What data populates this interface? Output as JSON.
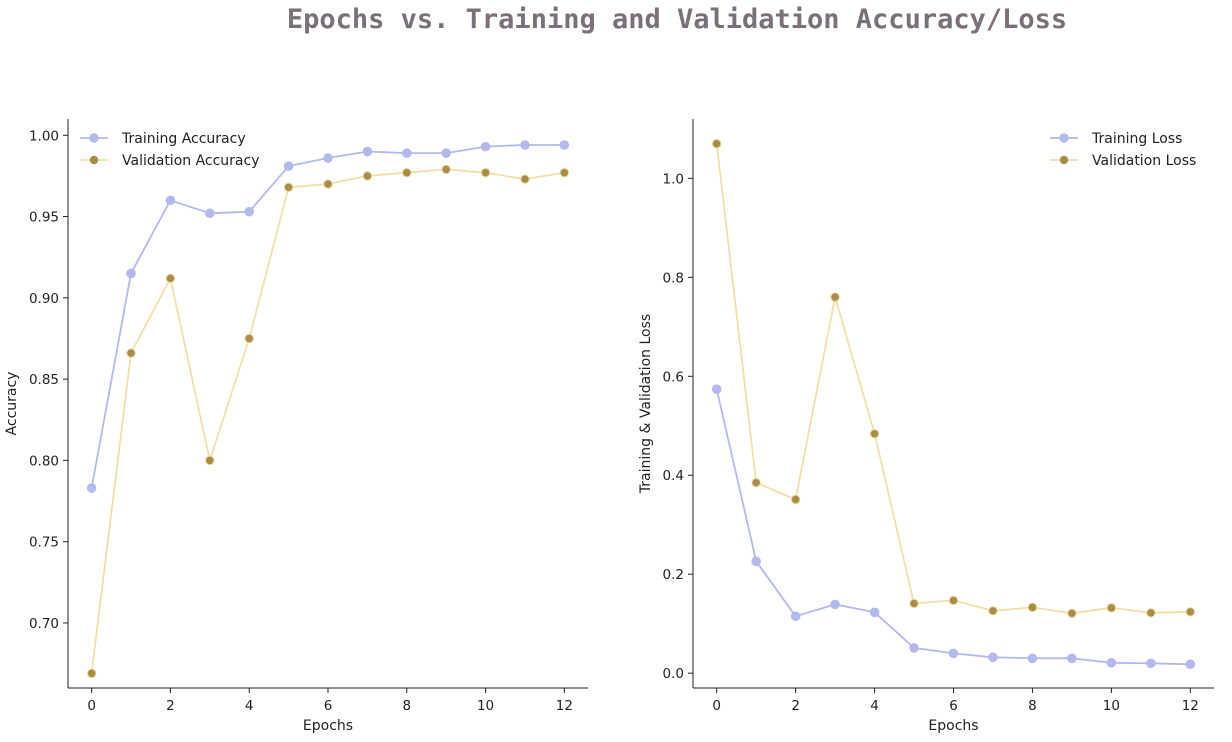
{
  "title": "Epochs vs. Training and Validation Accuracy/Loss",
  "colors": {
    "training": "#b3b9ec",
    "validation_line": "#f3dfa6",
    "validation_marker": "#aa8c45",
    "title": "#7b7079"
  },
  "chart_data": [
    {
      "type": "line",
      "xlabel": "Epochs",
      "ylabel": "Accuracy",
      "xlim": [
        -0.6,
        12.6
      ],
      "ylim": [
        0.66,
        1.01
      ],
      "xticks": [
        0,
        2,
        4,
        6,
        8,
        10,
        12
      ],
      "yticks": [
        0.7,
        0.75,
        0.8,
        0.85,
        0.9,
        0.95,
        1.0
      ],
      "ytick_labels": [
        "0.70",
        "0.75",
        "0.80",
        "0.85",
        "0.90",
        "0.95",
        "1.00"
      ],
      "legend": "upper-left",
      "grid": false,
      "x": [
        0,
        1,
        2,
        3,
        4,
        5,
        6,
        7,
        8,
        9,
        10,
        11,
        12
      ],
      "series": [
        {
          "name": "Training Accuracy",
          "color": "#b3b9ec",
          "values": [
            0.783,
            0.915,
            0.96,
            0.952,
            0.953,
            0.981,
            0.986,
            0.99,
            0.989,
            0.989,
            0.993,
            0.994,
            0.994
          ]
        },
        {
          "name": "Validation Accuracy",
          "color": "#f3dfa6",
          "marker_color": "#aa8c45",
          "values": [
            0.669,
            0.866,
            0.912,
            0.8,
            0.875,
            0.968,
            0.97,
            0.975,
            0.977,
            0.979,
            0.977,
            0.973,
            0.977
          ]
        }
      ]
    },
    {
      "type": "line",
      "xlabel": "Epochs",
      "ylabel": "Training & Validation Loss",
      "xlim": [
        -0.6,
        12.6
      ],
      "ylim": [
        -0.03,
        1.12
      ],
      "xticks": [
        0,
        2,
        4,
        6,
        8,
        10,
        12
      ],
      "yticks": [
        0.0,
        0.2,
        0.4,
        0.6,
        0.8,
        1.0
      ],
      "ytick_labels": [
        "0.0",
        "0.2",
        "0.4",
        "0.6",
        "0.8",
        "1.0"
      ],
      "legend": "upper-right",
      "grid": false,
      "x": [
        0,
        1,
        2,
        3,
        4,
        5,
        6,
        7,
        8,
        9,
        10,
        11,
        12
      ],
      "series": [
        {
          "name": "Training Loss",
          "color": "#b3b9ec",
          "values": [
            0.574,
            0.226,
            0.115,
            0.139,
            0.123,
            0.051,
            0.04,
            0.032,
            0.03,
            0.03,
            0.021,
            0.02,
            0.018
          ]
        },
        {
          "name": "Validation Loss",
          "color": "#f3dfa6",
          "marker_color": "#aa8c45",
          "values": [
            1.07,
            0.385,
            0.351,
            0.76,
            0.484,
            0.141,
            0.147,
            0.126,
            0.133,
            0.121,
            0.132,
            0.122,
            0.124
          ]
        }
      ]
    }
  ]
}
